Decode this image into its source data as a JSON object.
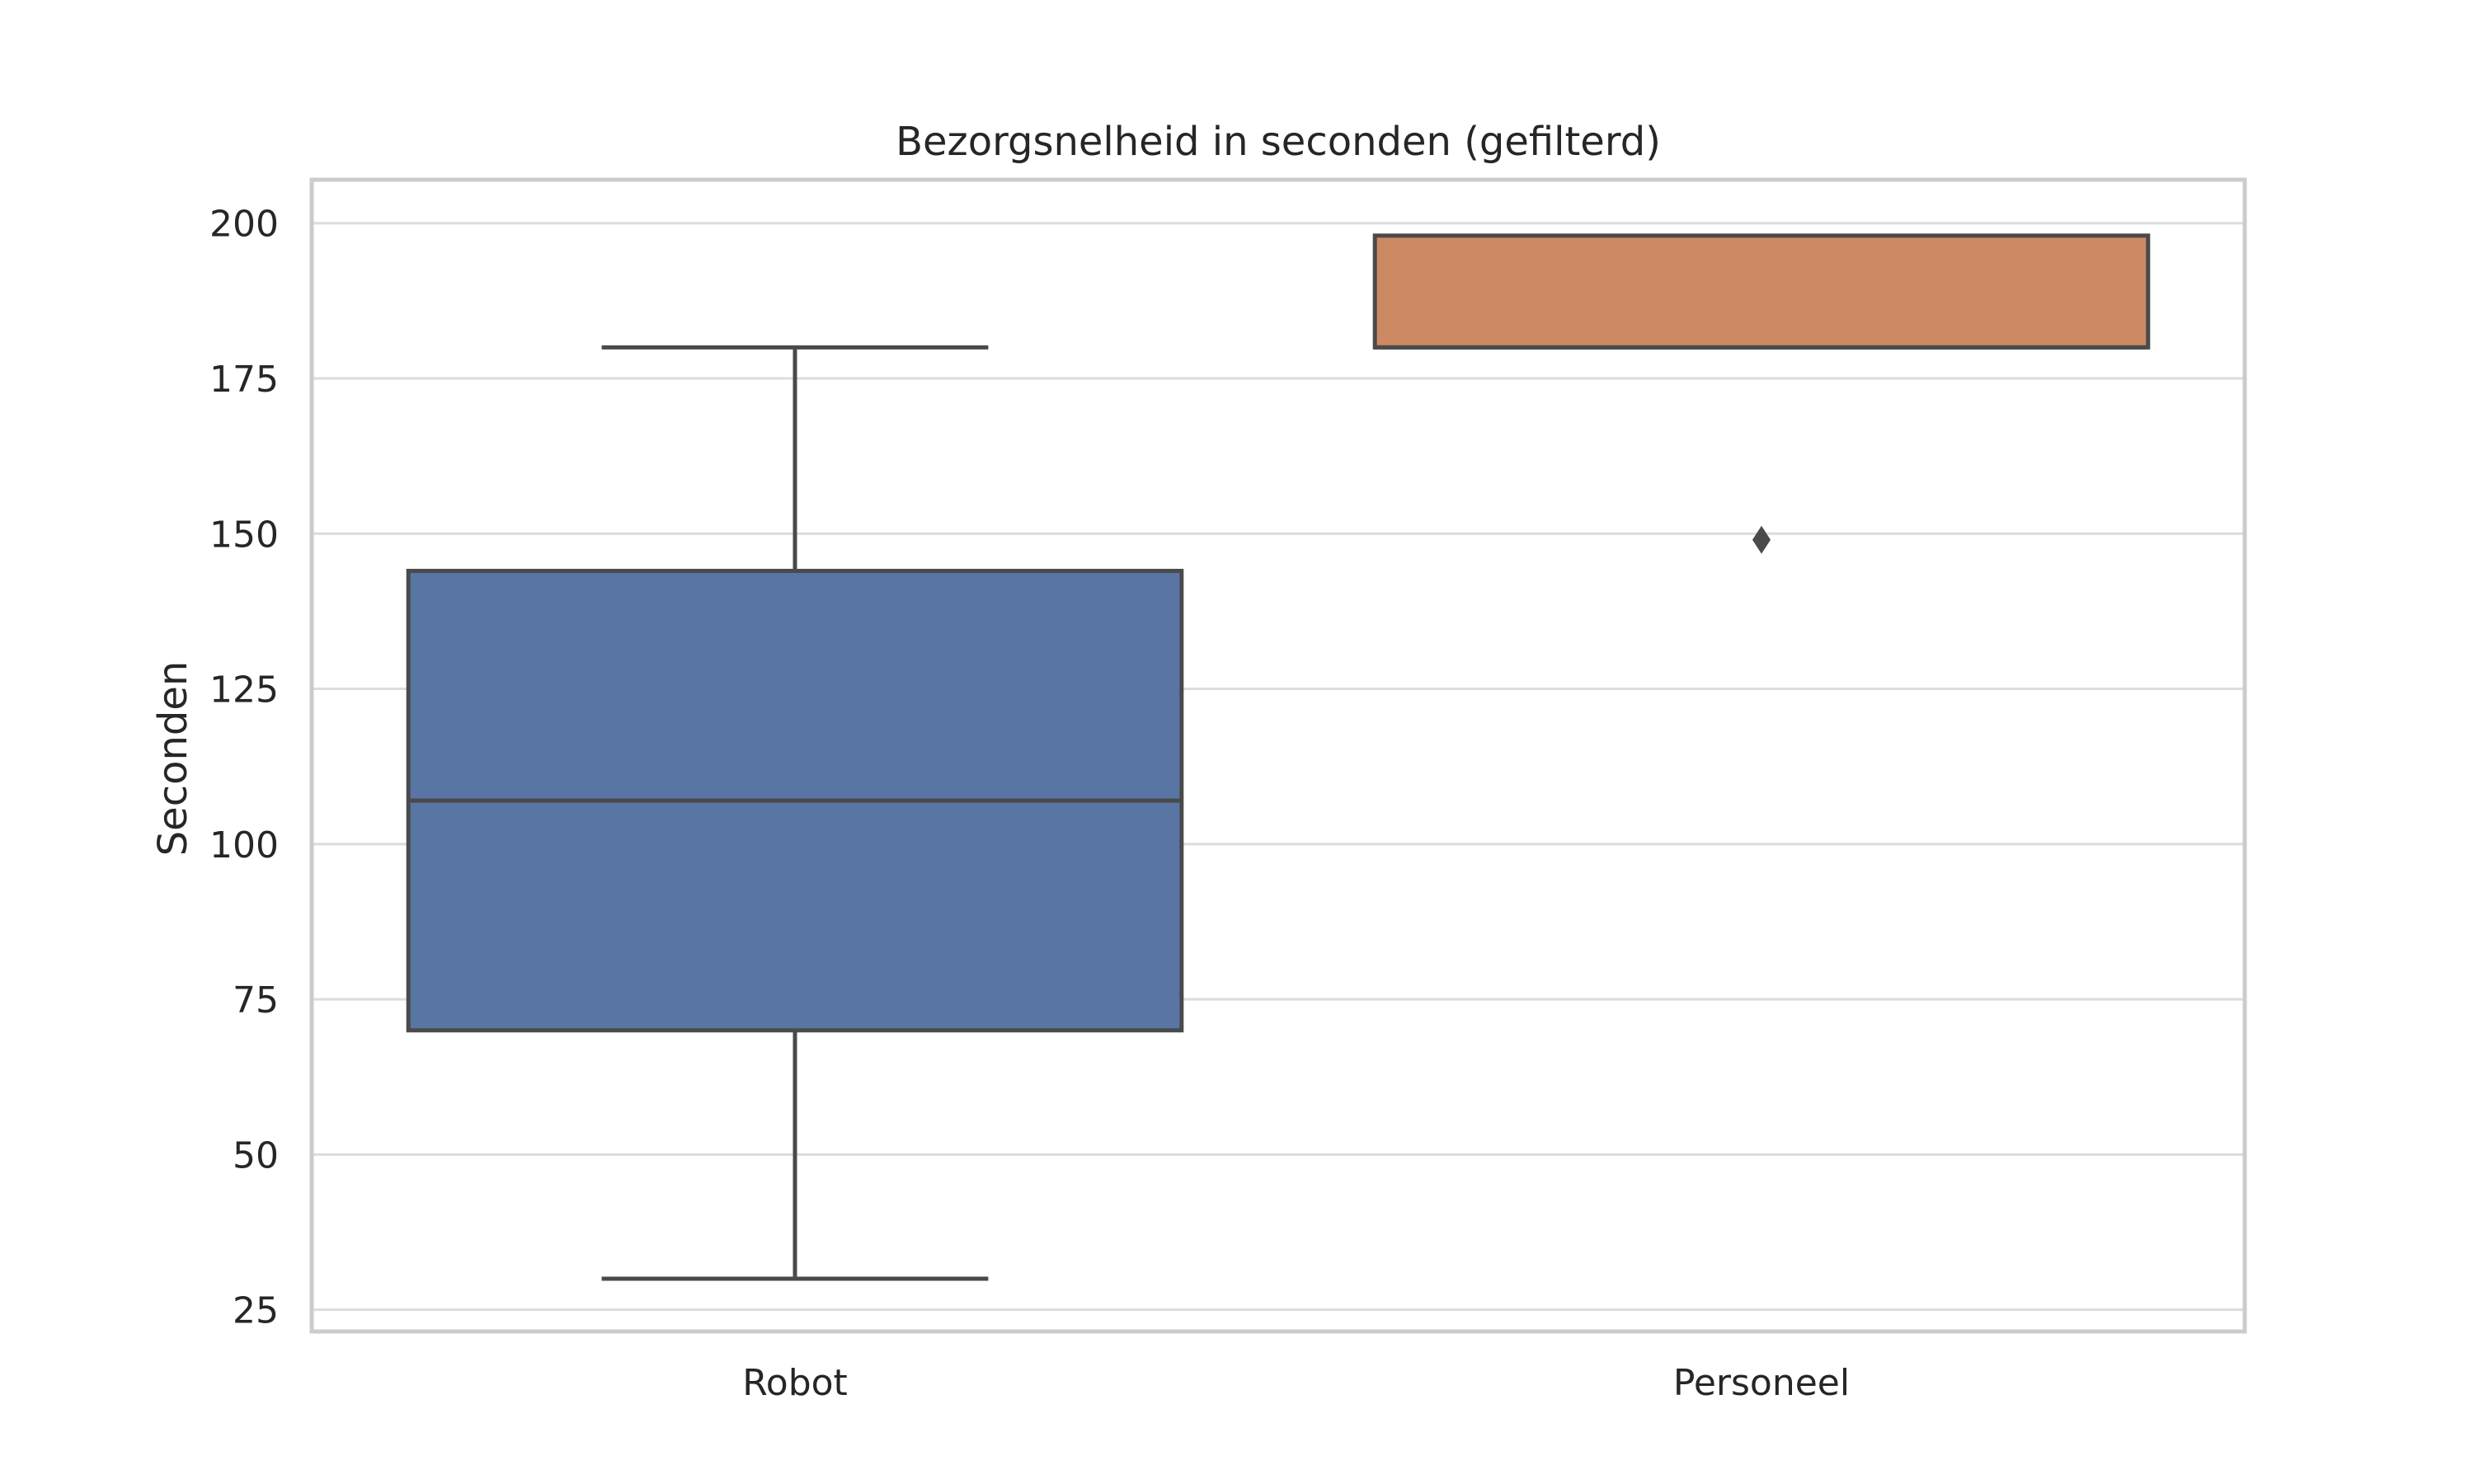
{
  "chart_data": {
    "type": "box",
    "title": "Bezorgsnelheid in seconden (gefilterd)",
    "xlabel": "",
    "ylabel": "Seconden",
    "ylim": [
      21.5,
      207
    ],
    "yticks": [
      25,
      50,
      75,
      100,
      125,
      150,
      175,
      200
    ],
    "grid": true,
    "legend": "none",
    "categories": [
      "Robot",
      "Personeel"
    ],
    "boxes": [
      {
        "category": "Robot",
        "whisker_low": 30,
        "q1": 70,
        "median": 107,
        "q3": 144,
        "whisker_high": 180,
        "outliers": [],
        "color": "#5875a4"
      },
      {
        "category": "Personeel",
        "whisker_low": 180,
        "q1": 180,
        "median": 180,
        "q3": 198,
        "whisker_high": 198,
        "outliers": [
          149
        ],
        "color": "#cc8963"
      }
    ],
    "colors": {
      "line": "#4a4a4a",
      "grid": "#dcdcdc",
      "frame": "#cccccc",
      "text": "#262626"
    }
  }
}
